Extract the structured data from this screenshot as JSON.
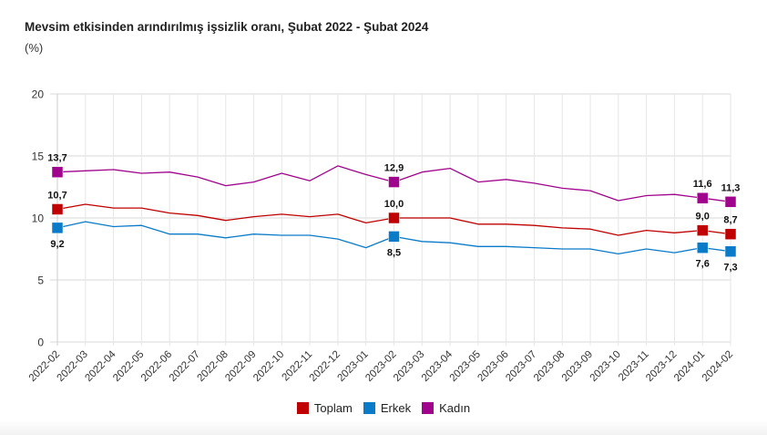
{
  "chart_data": {
    "type": "line",
    "title": "Mevsim etkisinden arındırılmış işsizlik oranı, Şubat 2022 - Şubat 2024",
    "subtitle": "(%)",
    "xlabel": "",
    "ylabel": "",
    "ylim": [
      0,
      20
    ],
    "yticks": [
      "0",
      "5",
      "10",
      "15",
      "20"
    ],
    "grid": true,
    "legend_position": "bottom-center",
    "categories": [
      "2022-02",
      "2022-03",
      "2022-04",
      "2022-05",
      "2022-06",
      "2022-07",
      "2022-08",
      "2022-09",
      "2022-10",
      "2022-11",
      "2022-12",
      "2023-01",
      "2023-02",
      "2023-03",
      "2023-04",
      "2023-05",
      "2023-06",
      "2023-07",
      "2023-08",
      "2023-09",
      "2023-10",
      "2023-11",
      "2023-12",
      "2024-01",
      "2024-02"
    ],
    "series": [
      {
        "name": "Toplam",
        "color": "#c00000",
        "values": [
          10.7,
          11.1,
          10.8,
          10.8,
          10.4,
          10.2,
          9.8,
          10.1,
          10.3,
          10.1,
          10.3,
          9.6,
          10.0,
          10.0,
          10.0,
          9.5,
          9.5,
          9.4,
          9.2,
          9.1,
          8.6,
          9.0,
          8.8,
          9.0,
          8.7
        ],
        "labeled_points": [
          {
            "index": 0,
            "label": "10,7",
            "position": "above"
          },
          {
            "index": 12,
            "label": "10,0",
            "position": "above"
          },
          {
            "index": 23,
            "label": "9,0",
            "position": "above"
          },
          {
            "index": 24,
            "label": "8,7",
            "position": "above"
          }
        ]
      },
      {
        "name": "Erkek",
        "color": "#0a7bc8",
        "values": [
          9.2,
          9.7,
          9.3,
          9.4,
          8.7,
          8.7,
          8.4,
          8.7,
          8.6,
          8.6,
          8.3,
          7.6,
          8.5,
          8.1,
          8.0,
          7.7,
          7.7,
          7.6,
          7.5,
          7.5,
          7.1,
          7.5,
          7.2,
          7.6,
          7.3
        ],
        "labeled_points": [
          {
            "index": 0,
            "label": "9,2",
            "position": "below"
          },
          {
            "index": 12,
            "label": "8,5",
            "position": "below"
          },
          {
            "index": 23,
            "label": "7,6",
            "position": "below"
          },
          {
            "index": 24,
            "label": "7,3",
            "position": "below"
          }
        ]
      },
      {
        "name": "Kadın",
        "color": "#a0048c",
        "values": [
          13.7,
          13.8,
          13.9,
          13.6,
          13.7,
          13.3,
          12.6,
          12.9,
          13.6,
          13.0,
          14.2,
          13.5,
          12.9,
          13.7,
          14.0,
          12.9,
          13.1,
          12.8,
          12.4,
          12.2,
          11.4,
          11.8,
          11.9,
          11.6,
          11.3
        ],
        "labeled_points": [
          {
            "index": 0,
            "label": "13,7",
            "position": "above"
          },
          {
            "index": 12,
            "label": "12,9",
            "position": "above"
          },
          {
            "index": 23,
            "label": "11,6",
            "position": "above"
          },
          {
            "index": 24,
            "label": "11,3",
            "position": "above"
          }
        ]
      }
    ]
  }
}
